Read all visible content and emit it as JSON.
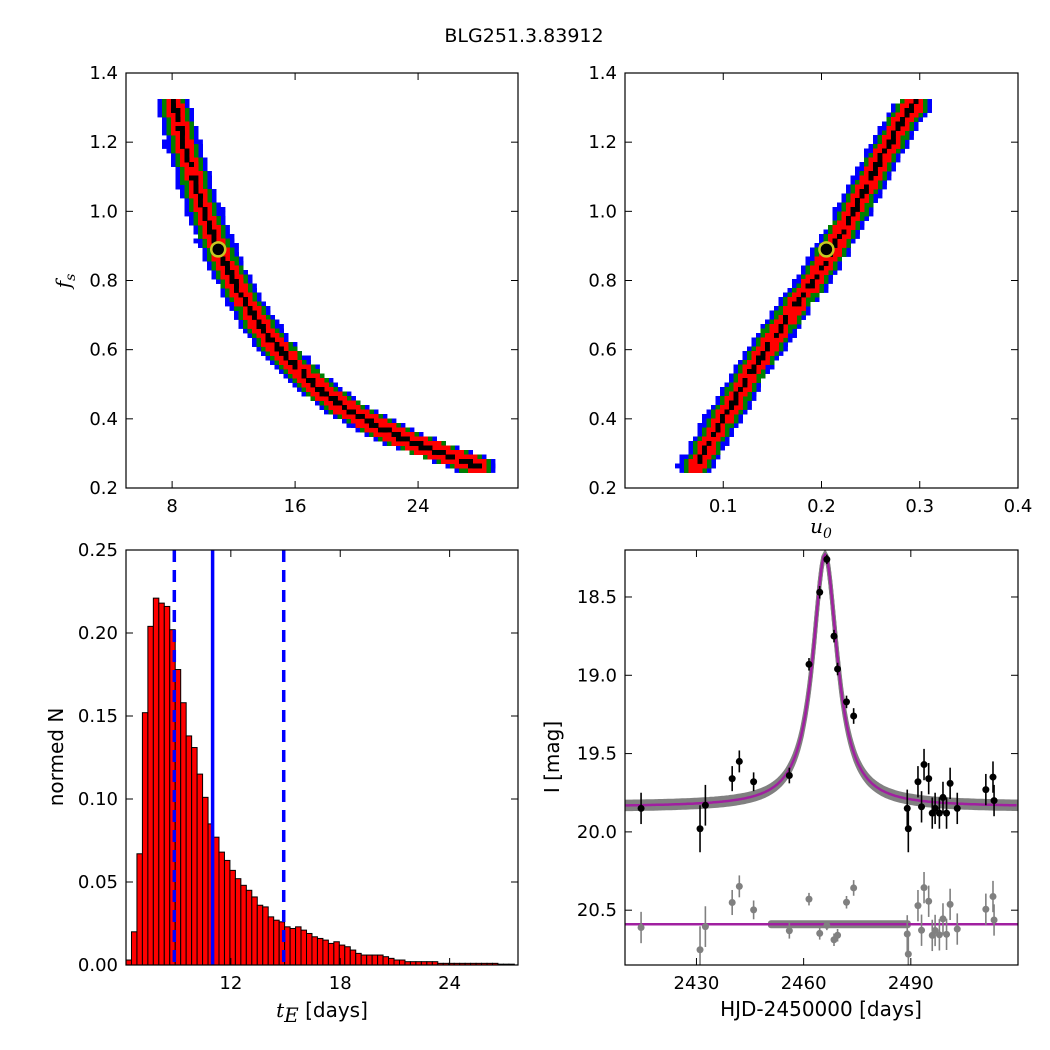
{
  "figure_title": "BLG251.3.83912",
  "colors": {
    "blue": "#0000ff",
    "green": "#008000",
    "red": "#ff0000",
    "black": "#000000",
    "gray": "#808080",
    "magenta": "#a020a0",
    "marker_edge": "#c8c820"
  },
  "chart_data": [
    {
      "type": "heatmap",
      "name": "fs-vs-tE",
      "ylabel_base": "f",
      "ylabel_sub": "s",
      "xlim": [
        5,
        30.5
      ],
      "ylim": [
        0.2,
        1.4
      ],
      "xticks": [
        "8",
        "16",
        "24"
      ],
      "xtick_values": [
        8,
        16,
        24
      ],
      "yticks": [
        "0.2",
        "0.4",
        "0.6",
        "0.8",
        "1.0",
        "1.2",
        "1.4"
      ],
      "ytick_values": [
        0.2,
        0.4,
        0.6,
        0.8,
        1.0,
        1.2,
        1.4
      ],
      "ridge": [
        [
          7.9,
          1.33
        ],
        [
          8.6,
          1.2
        ],
        [
          9.4,
          1.08
        ],
        [
          10.2,
          0.97
        ],
        [
          11,
          0.88
        ],
        [
          12,
          0.79
        ],
        [
          13.2,
          0.7
        ],
        [
          14.5,
          0.62
        ],
        [
          16,
          0.55
        ],
        [
          17.5,
          0.49
        ],
        [
          19,
          0.44
        ],
        [
          20.6,
          0.4
        ],
        [
          22.3,
          0.36
        ],
        [
          24,
          0.33
        ],
        [
          25.8,
          0.3
        ],
        [
          27.8,
          0.27
        ]
      ],
      "levels": [
        "blue",
        "green",
        "red",
        "black"
      ],
      "best_fit": {
        "x": 11.0,
        "y": 0.89
      }
    },
    {
      "type": "heatmap",
      "name": "fs-vs-u0",
      "xlabel_base": "u",
      "xlabel_sub": "0",
      "xlim": [
        0.0,
        0.4
      ],
      "ylim": [
        0.2,
        1.4
      ],
      "xticks": [
        "0.1",
        "0.2",
        "0.3",
        "0.4"
      ],
      "xtick_values": [
        0.1,
        0.2,
        0.3,
        0.4
      ],
      "yticks": [
        "0.2",
        "0.4",
        "0.6",
        "0.8",
        "1.0",
        "1.2",
        "1.4"
      ],
      "ytick_values": [
        0.2,
        0.4,
        0.6,
        0.8,
        1.0,
        1.2,
        1.4
      ],
      "ridge": [
        [
          0.07,
          0.27
        ],
        [
          0.1,
          0.42
        ],
        [
          0.13,
          0.56
        ],
        [
          0.16,
          0.69
        ],
        [
          0.19,
          0.81
        ],
        [
          0.215,
          0.93
        ],
        [
          0.24,
          1.06
        ],
        [
          0.26,
          1.17
        ],
        [
          0.28,
          1.27
        ],
        [
          0.295,
          1.33
        ]
      ],
      "levels": [
        "blue",
        "green",
        "red",
        "black"
      ],
      "best_fit": {
        "x": 0.205,
        "y": 0.89
      }
    },
    {
      "type": "bar",
      "name": "tE-histogram",
      "xlabel_base": "t",
      "xlabel_sub": "E",
      "xlabel_rest": "[days]",
      "ylabel": "normed N",
      "xlim": [
        6.25,
        27.75
      ],
      "ylim": [
        0.0,
        0.25
      ],
      "xticks": [
        "12",
        "18",
        "24"
      ],
      "xtick_values": [
        12,
        18,
        24
      ],
      "yticks": [
        "0.00",
        "0.05",
        "0.10",
        "0.15",
        "0.20",
        "0.25"
      ],
      "ytick_values": [
        0.0,
        0.05,
        0.1,
        0.15,
        0.2,
        0.25
      ],
      "bin_start": 6.25,
      "bin_width": 0.3,
      "values": [
        0.003,
        0.02,
        0.067,
        0.152,
        0.204,
        0.221,
        0.218,
        0.216,
        0.202,
        0.178,
        0.158,
        0.138,
        0.131,
        0.115,
        0.101,
        0.085,
        0.077,
        0.068,
        0.063,
        0.057,
        0.052,
        0.048,
        0.045,
        0.041,
        0.036,
        0.035,
        0.029,
        0.027,
        0.026,
        0.023,
        0.022,
        0.023,
        0.021,
        0.019,
        0.017,
        0.016,
        0.015,
        0.013,
        0.014,
        0.012,
        0.011,
        0.009,
        0.007,
        0.006,
        0.006,
        0.006,
        0.006,
        0.005,
        0.004,
        0.003,
        0.003,
        0.002,
        0.002,
        0.002,
        0.002,
        0.002,
        0.002,
        0.001,
        0.001,
        0.001,
        0.001,
        0.001,
        0.001,
        0.001,
        0.001,
        0.001,
        0.001,
        0.001,
        0.0005,
        0.0005,
        0.0005
      ],
      "median_line": 11.0,
      "interval_lines": [
        8.9,
        14.9
      ]
    },
    {
      "type": "scatter",
      "name": "light-curve",
      "xlabel": "HJD-2450000 [days]",
      "ylabel": "I [mag]",
      "xlim": [
        2410,
        2520
      ],
      "ylim": [
        20.85,
        18.2
      ],
      "xticks": [
        "2430",
        "2460",
        "2490"
      ],
      "xtick_values": [
        2430,
        2460,
        2490
      ],
      "yticks": [
        "18.5",
        "19.0",
        "19.5",
        "20.0",
        "20.5"
      ],
      "ytick_values": [
        18.5,
        19.0,
        19.5,
        20.0,
        20.5
      ],
      "model": {
        "t0": 2466.0,
        "baseline": 19.84,
        "peak": 18.23,
        "width": 4.2
      },
      "residual_offset": 0.75,
      "points": [
        [
          2414.5,
          19.85,
          0.1
        ],
        [
          2431,
          19.98,
          0.15
        ],
        [
          2432.5,
          19.83,
          0.13
        ],
        [
          2440,
          19.66,
          0.08
        ],
        [
          2442,
          19.55,
          0.07
        ],
        [
          2446,
          19.68,
          0.06
        ],
        [
          2456,
          19.64,
          0.05
        ],
        [
          2461.5,
          18.93,
          0.04
        ],
        [
          2464.5,
          18.47,
          0.04
        ],
        [
          2466.5,
          18.26,
          0.03
        ],
        [
          2468.5,
          18.75,
          0.04
        ],
        [
          2469.5,
          18.96,
          0.04
        ],
        [
          2472,
          19.17,
          0.04
        ],
        [
          2474,
          19.26,
          0.05
        ],
        [
          2489,
          19.85,
          0.12
        ],
        [
          2489.3,
          19.98,
          0.15
        ],
        [
          2492,
          19.68,
          0.1
        ],
        [
          2493,
          19.84,
          0.1
        ],
        [
          2493.7,
          19.57,
          0.1
        ],
        [
          2495,
          19.66,
          0.1
        ],
        [
          2496,
          19.88,
          0.1
        ],
        [
          2496.8,
          19.85,
          0.1
        ],
        [
          2498,
          19.88,
          0.1
        ],
        [
          2499,
          19.78,
          0.1
        ],
        [
          2500,
          19.88,
          0.1
        ],
        [
          2501,
          19.69,
          0.1
        ],
        [
          2503,
          19.85,
          0.1
        ],
        [
          2511,
          19.73,
          0.1
        ],
        [
          2513,
          19.65,
          0.1
        ],
        [
          2513.3,
          19.8,
          0.1
        ]
      ]
    }
  ]
}
